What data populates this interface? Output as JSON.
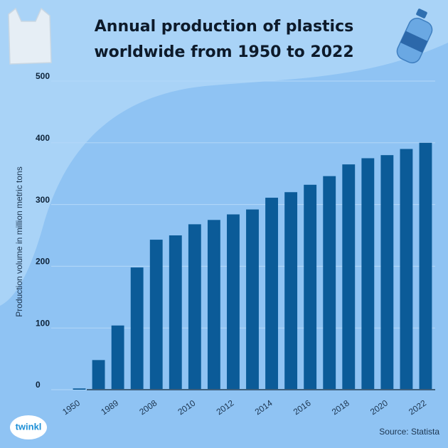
{
  "chart_data": {
    "type": "bar",
    "title": "Annual production of plastics worldwide from 1950 to 2022",
    "y_label": "Production volume in million metric tons",
    "source": "Source: Statista",
    "logo": "twinkl",
    "categories": [
      "1950",
      null,
      "1989",
      null,
      "2008",
      null,
      "2010",
      null,
      "2012",
      null,
      "2014",
      null,
      "2016",
      null,
      "2018",
      null,
      "2020",
      null,
      "2022"
    ],
    "values": [
      2,
      48,
      104,
      198,
      243,
      250,
      268,
      275,
      284,
      292,
      311,
      320,
      332,
      346,
      365,
      375,
      380,
      390,
      400
    ],
    "color": "#0b5b98",
    "ylim": [
      0,
      500
    ],
    "yticks": [
      0,
      100,
      200,
      300,
      400,
      500
    ],
    "grid": true
  }
}
